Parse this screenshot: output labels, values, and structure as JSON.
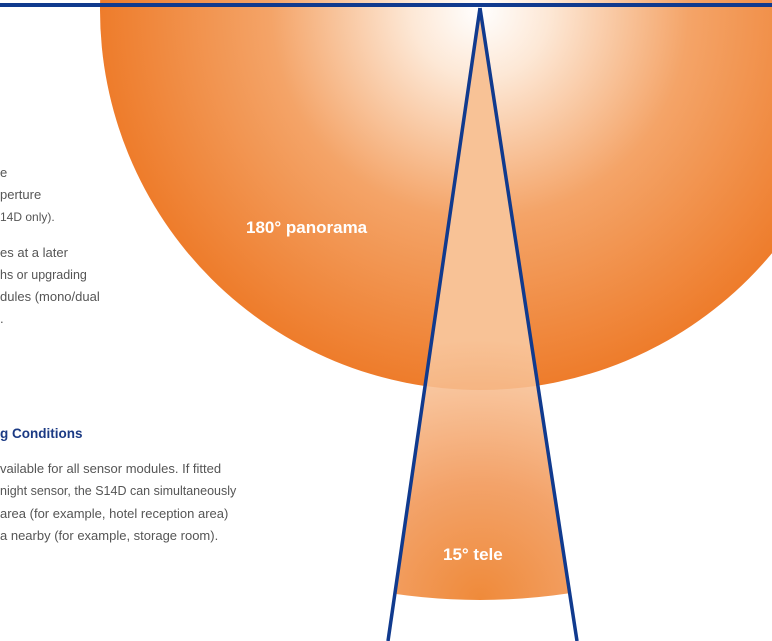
{
  "text_lines": {
    "l1": "e",
    "l2": "perture",
    "l3": "14D only).",
    "l4": "es at a later",
    "l5": "hs or upgrading",
    "l6": "dules (mono/dual",
    "l7": ".",
    "heading": "g Conditions",
    "p1": "vailable for all sensor modules. If fitted",
    "p2": "night sensor, the S14D can simultaneously",
    "p3": "area (for example, hotel reception area)",
    "p4": "a nearby (for example, storage room)."
  },
  "diagram": {
    "panorama_label": "180° panorama",
    "tele_label": "15° tele",
    "colors": {
      "orange": "#ef8a3a",
      "orange_deep": "#ee7c2b",
      "line_blue": "#103a8e",
      "white": "#ffffff"
    }
  }
}
